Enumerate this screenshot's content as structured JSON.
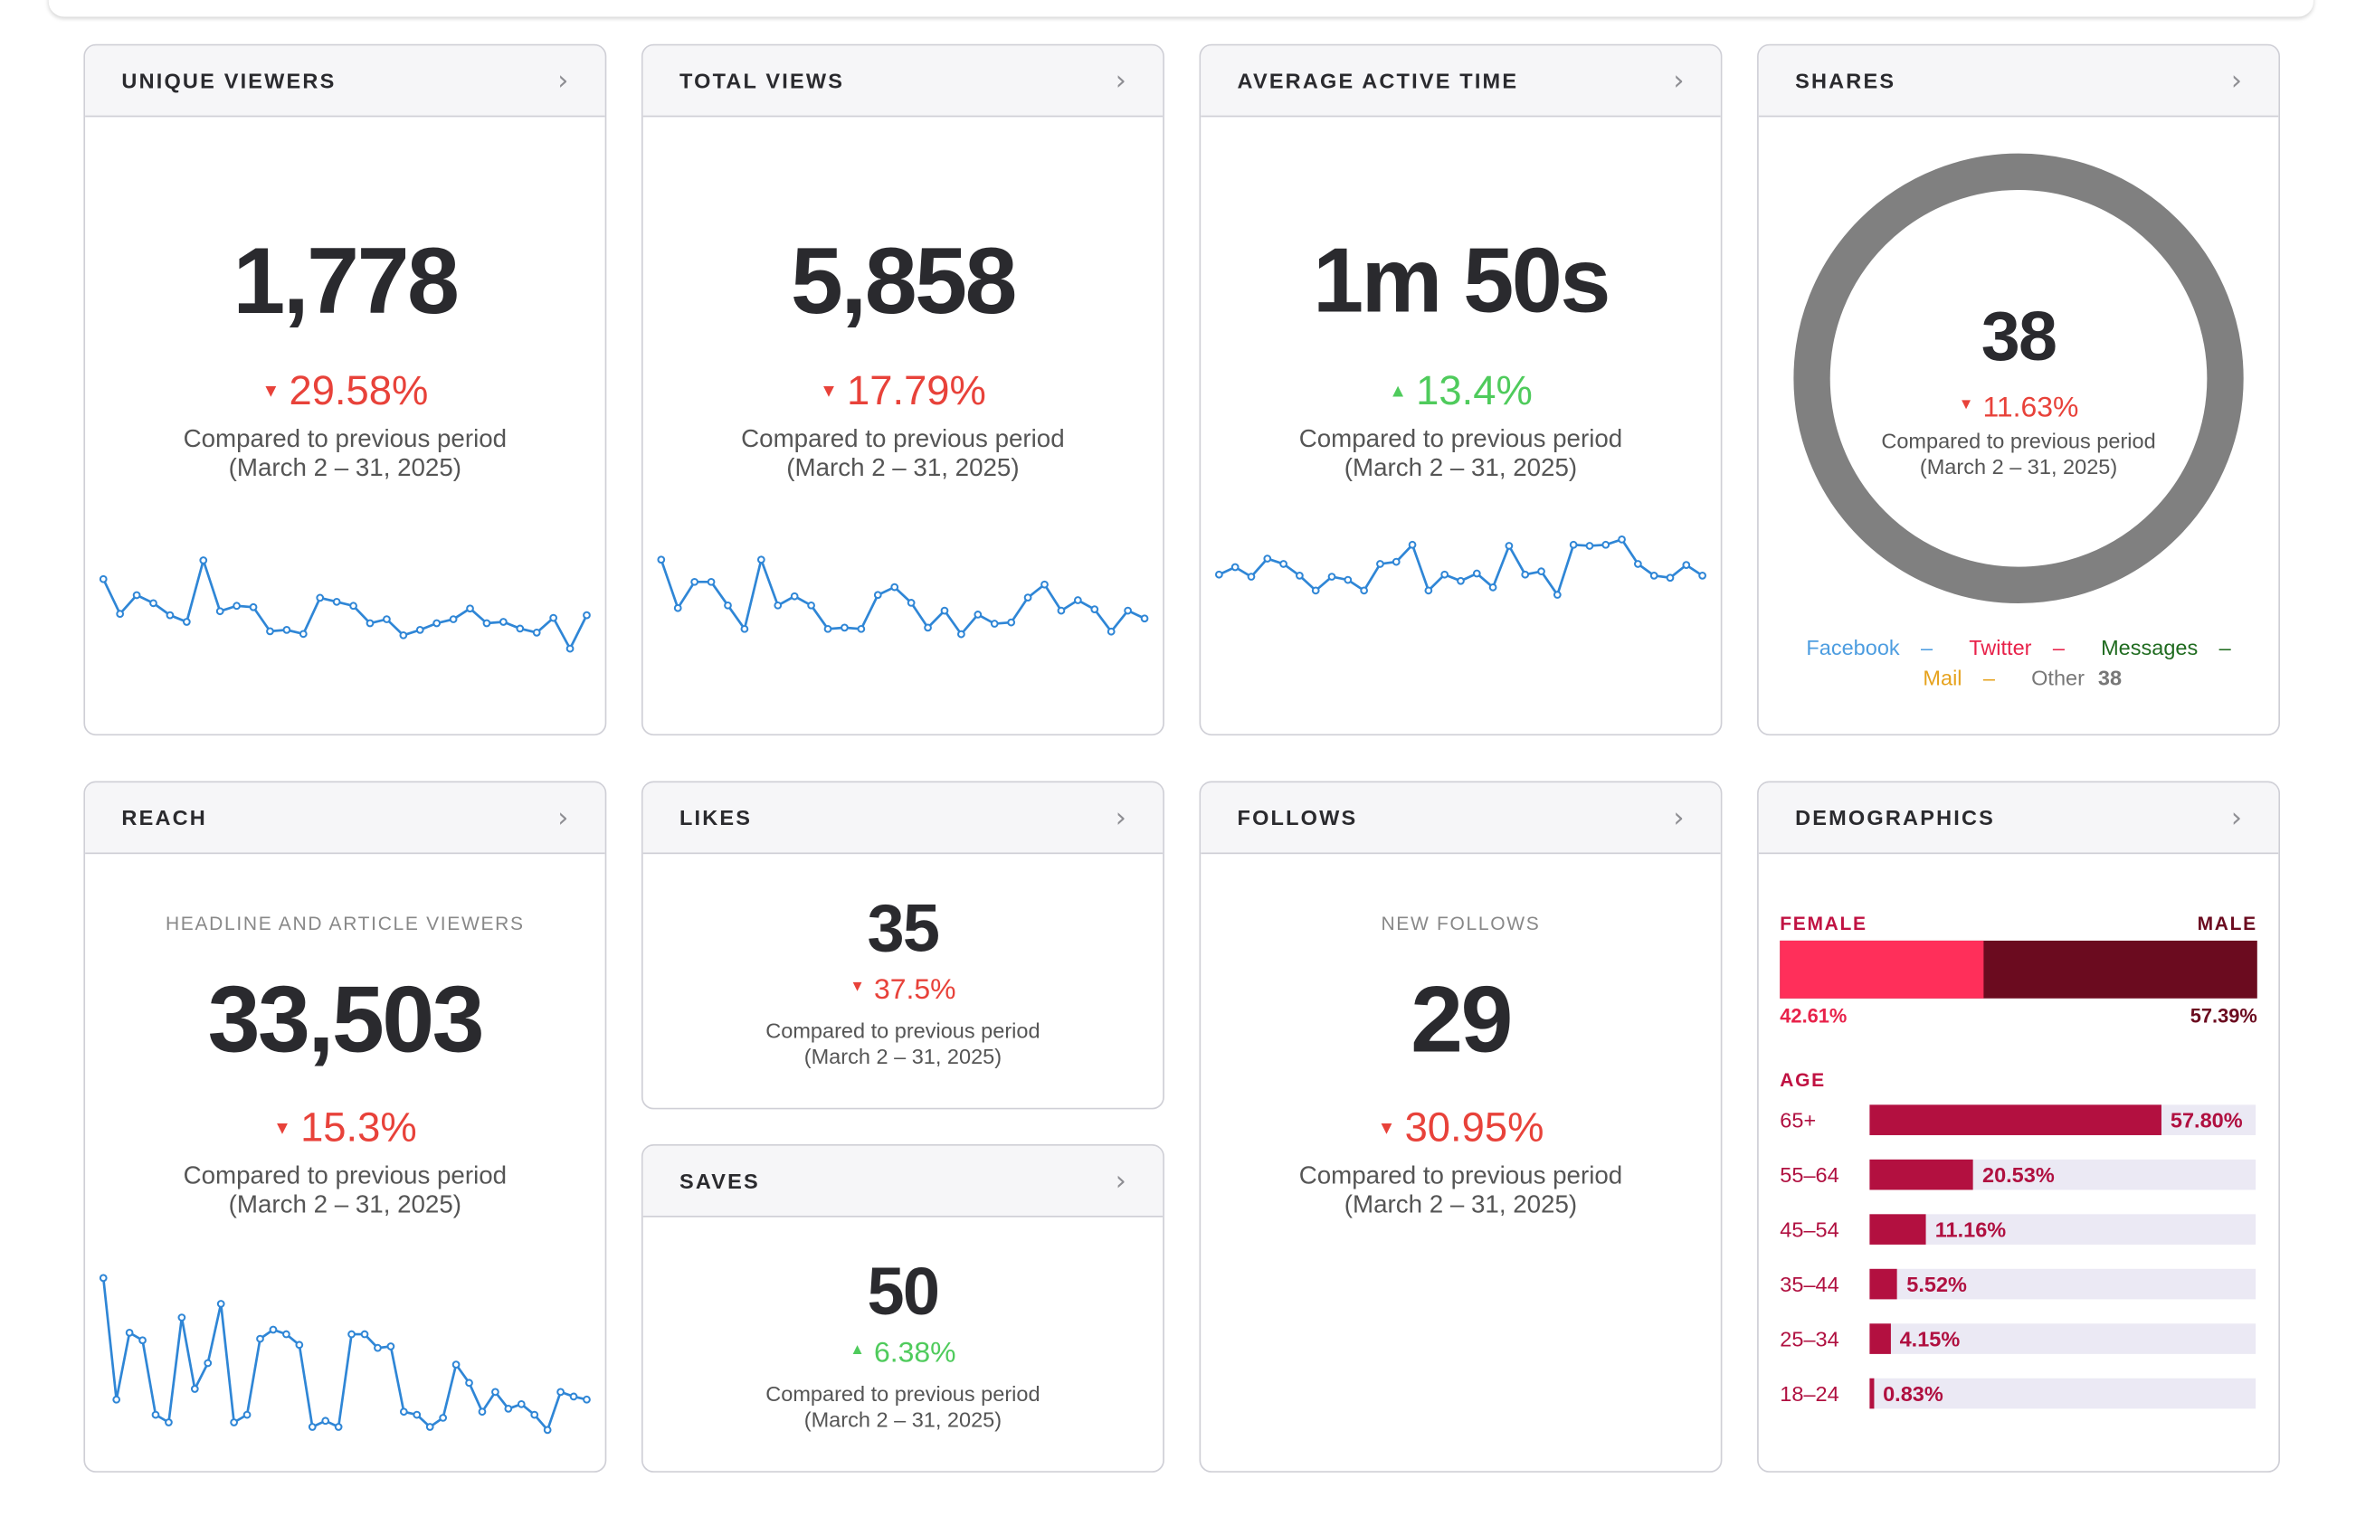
{
  "compare_text": "Compared to previous period",
  "compare_period": "(March 2 – 31, 2025)",
  "colors": {
    "down": "#e8423a",
    "up": "#4fcb5c",
    "line": "#2f86d6",
    "female": "#ff2f5a",
    "male": "#6b0b1f",
    "age_bar": "#b31040"
  },
  "cards": {
    "unique_viewers": {
      "title": "UNIQUE VIEWERS",
      "value": "1,778",
      "change": "29.58%",
      "direction": "down",
      "trend": [
        16,
        42,
        28,
        34,
        43,
        48,
        2,
        40,
        36,
        37,
        55,
        54,
        57,
        30,
        33,
        36,
        49,
        46,
        58,
        54,
        49,
        46,
        38,
        49,
        48,
        53,
        56,
        45,
        68,
        43
      ]
    },
    "total_views": {
      "title": "TOTAL VIEWS",
      "value": "5,858",
      "change": "17.79%",
      "direction": "down",
      "trend": [
        5,
        42,
        22,
        22,
        40,
        58,
        5,
        40,
        33,
        40,
        58,
        57,
        58,
        32,
        26,
        38,
        57,
        44,
        62,
        47,
        54,
        53,
        34,
        24,
        44,
        36,
        43,
        60,
        44,
        50
      ]
    },
    "average_active_time": {
      "title": "AVERAGE ACTIVE TIME",
      "value": "1m 50s",
      "change": "13.4%",
      "direction": "up",
      "trend": [
        33,
        26,
        35,
        18,
        23,
        34,
        48,
        35,
        38,
        48,
        23,
        21,
        5,
        48,
        33,
        39,
        32,
        45,
        6,
        33,
        30,
        52,
        5,
        6,
        5,
        0,
        23,
        34,
        36,
        24,
        34
      ]
    },
    "shares": {
      "title": "SHARES",
      "value": "38",
      "change": "11.63%",
      "direction": "down",
      "legend": {
        "facebook": "Facebook",
        "twitter": "Twitter",
        "messages": "Messages",
        "mail": "Mail",
        "other": "Other",
        "other_count": "38",
        "dash": "–"
      }
    },
    "reach": {
      "title": "REACH",
      "subtitle": "HEADLINE AND ARTICLE VIEWERS",
      "value": "33,503",
      "change": "15.3%",
      "direction": "down",
      "trend": [
        0,
        80,
        36,
        41,
        90,
        95,
        26,
        73,
        56,
        17,
        95,
        90,
        40,
        34,
        37,
        44,
        98,
        94,
        98,
        37,
        37,
        46,
        45,
        88,
        90,
        98,
        92,
        57,
        69,
        88,
        75,
        86,
        83,
        90,
        100,
        75,
        78,
        80
      ]
    },
    "likes": {
      "title": "LIKES",
      "value": "35",
      "change": "37.5%",
      "direction": "down"
    },
    "saves": {
      "title": "SAVES",
      "value": "50",
      "change": "6.38%",
      "direction": "up"
    },
    "follows": {
      "title": "FOLLOWS",
      "subtitle": "NEW FOLLOWS",
      "value": "29",
      "change": "30.95%",
      "direction": "down"
    },
    "demographics": {
      "title": "DEMOGRAPHICS",
      "female_label": "FEMALE",
      "male_label": "MALE",
      "female_pct": "42.61%",
      "male_pct": "57.39%",
      "female_share": 42.61,
      "age_label": "AGE",
      "ages": [
        {
          "label": "65+",
          "value": 57.8,
          "text": "57.80%"
        },
        {
          "label": "55–64",
          "value": 20.53,
          "text": "20.53%"
        },
        {
          "label": "45–54",
          "value": 11.16,
          "text": "11.16%"
        },
        {
          "label": "35–44",
          "value": 5.52,
          "text": "5.52%"
        },
        {
          "label": "25–34",
          "value": 4.15,
          "text": "4.15%"
        },
        {
          "label": "18–24",
          "value": 0.83,
          "text": "0.83%"
        }
      ]
    }
  },
  "chevron": "›",
  "triangle_down": "▼",
  "triangle_up": "▲"
}
